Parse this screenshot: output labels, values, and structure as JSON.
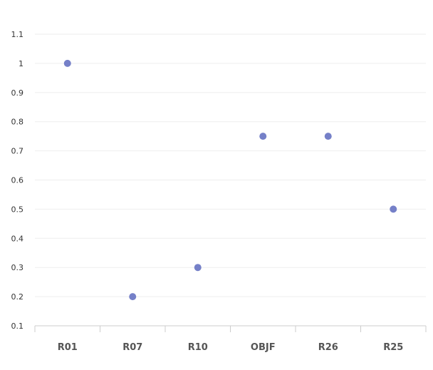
{
  "chart_data": {
    "type": "scatter",
    "categories": [
      "R01",
      "R07",
      "R10",
      "OBJF",
      "R26",
      "R25"
    ],
    "series": [
      {
        "values": [
          1.0,
          0.2,
          0.3,
          0.75,
          0.75,
          0.5
        ]
      }
    ],
    "yticks": [
      "0.1",
      "0.2",
      "0.3",
      "0.4",
      "0.5",
      "0.6",
      "0.7",
      "0.8",
      "0.9",
      "1",
      "1.1"
    ],
    "ylim": [
      0.1,
      1.1
    ],
    "grid": true,
    "colors": {
      "point": "#7580c8",
      "grid": "#eeeeee",
      "axis": "#cccccc"
    }
  }
}
